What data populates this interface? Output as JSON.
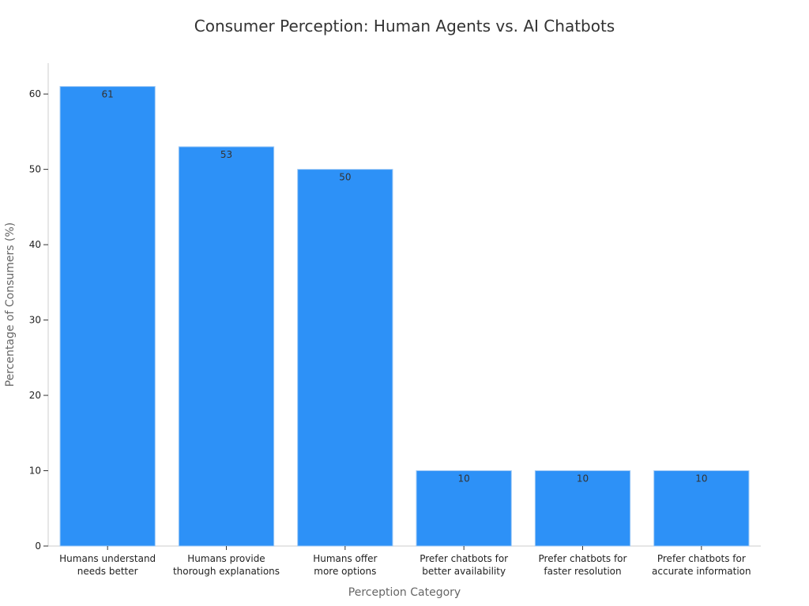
{
  "chart_data": {
    "type": "bar",
    "title": "Consumer Perception: Human Agents vs. AI Chatbots",
    "xlabel": "Perception Category",
    "ylabel": "Percentage of Consumers (%)",
    "categories": [
      [
        "Humans understand",
        "needs better"
      ],
      [
        "Humans provide",
        "thorough explanations"
      ],
      [
        "Humans offer",
        "more options"
      ],
      [
        "Prefer chatbots for",
        "better availability"
      ],
      [
        "Prefer chatbots for",
        "faster resolution"
      ],
      [
        "Prefer chatbots for",
        "accurate information"
      ]
    ],
    "values": [
      61,
      53,
      50,
      10,
      10,
      10
    ],
    "data_labels": [
      "61",
      "53",
      "50",
      "10",
      "10",
      "10"
    ],
    "yticks": [
      0,
      10,
      20,
      30,
      40,
      50,
      60
    ],
    "ylim": [
      0,
      64.1
    ],
    "grid": false,
    "legend": "none",
    "bar_color": "#2d91f7"
  }
}
